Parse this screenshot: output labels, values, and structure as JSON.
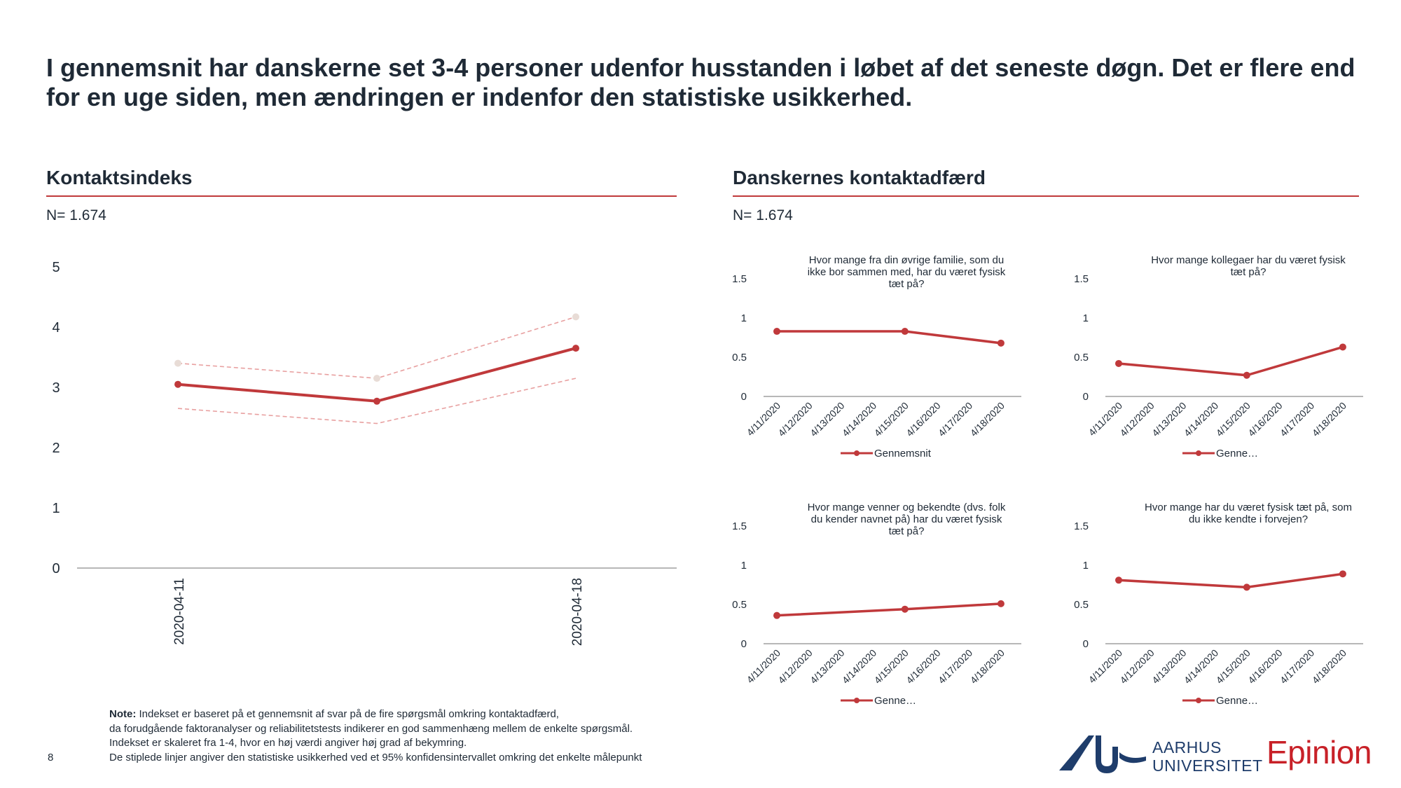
{
  "headline": "I gennemsnit har danskerne set 3-4 personer udenfor husstanden i løbet af det seneste døgn. Det er flere end for en uge siden, men ændringen er indenfor den statistiske usikkerhed.",
  "left": {
    "title": "Kontaktsindeks",
    "n_label": "N= 1.674"
  },
  "right": {
    "title": "Danskernes kontaktadfærd",
    "n_label": "N= 1.674"
  },
  "colors": {
    "accent": "#c0393b",
    "dashed_band": "#e8a0a0",
    "band_marker": "#e8dcd6",
    "text": "#1f2a36",
    "au_blue": "#1f3d6b",
    "epinion_red": "#c82128"
  },
  "chart_data": [
    {
      "type": "line",
      "y_ticks": [
        "0",
        "1",
        "2",
        "3",
        "4",
        "5"
      ],
      "ylim": [
        0,
        5
      ],
      "x_tick_labels": [
        "2020-04-11",
        "2020-04-18"
      ],
      "series": [
        {
          "values": [
            3.05,
            2.77,
            3.65
          ]
        },
        {
          "values": [
            3.4,
            3.15,
            4.17
          ]
        },
        {
          "values": [
            2.65,
            2.4,
            3.15
          ]
        }
      ]
    },
    {
      "type": "line",
      "title": "Hvor mange fra din øvrige familie, som du ikke bor sammen med, har du været fysisk tæt på?",
      "categories": [
        "4/11/2020",
        "4/12/2020",
        "4/13/2020",
        "4/14/2020",
        "4/15/2020",
        "4/16/2020",
        "4/17/2020",
        "4/18/2020"
      ],
      "y_ticks": [
        "0",
        "0.5",
        "1",
        "1.5"
      ],
      "ylim": [
        0,
        1.5
      ],
      "series": [
        {
          "name": "Gennemsnit",
          "x": [
            "4/11/2020",
            "4/15/2020",
            "4/18/2020"
          ],
          "values": [
            0.83,
            0.83,
            0.68
          ]
        }
      ],
      "legend_label": "Gennemsnit"
    },
    {
      "type": "line",
      "title": "Hvor mange kollegaer har du været fysisk tæt på?",
      "categories": [
        "4/11/2020",
        "4/12/2020",
        "4/13/2020",
        "4/14/2020",
        "4/15/2020",
        "4/16/2020",
        "4/17/2020",
        "4/18/2020"
      ],
      "y_ticks": [
        "0",
        "0.5",
        "1",
        "1.5"
      ],
      "ylim": [
        0,
        1.5
      ],
      "series": [
        {
          "name": "Genne…",
          "x": [
            "4/11/2020",
            "4/15/2020",
            "4/18/2020"
          ],
          "values": [
            0.42,
            0.27,
            0.63
          ]
        }
      ],
      "legend_label": "Genne…"
    },
    {
      "type": "line",
      "title": "Hvor mange venner og bekendte (dvs. folk du kender navnet på) har du været fysisk tæt på?",
      "categories": [
        "4/11/2020",
        "4/12/2020",
        "4/13/2020",
        "4/14/2020",
        "4/15/2020",
        "4/16/2020",
        "4/17/2020",
        "4/18/2020"
      ],
      "y_ticks": [
        "0",
        "0.5",
        "1",
        "1.5"
      ],
      "ylim": [
        0,
        1.5
      ],
      "series": [
        {
          "name": "Genne…",
          "x": [
            "4/11/2020",
            "4/15/2020",
            "4/18/2020"
          ],
          "values": [
            0.36,
            0.44,
            0.51
          ]
        }
      ],
      "legend_label": "Genne…"
    },
    {
      "type": "line",
      "title": "Hvor mange har du været fysisk tæt på, som du ikke kendte i forvejen?",
      "categories": [
        "4/11/2020",
        "4/12/2020",
        "4/13/2020",
        "4/14/2020",
        "4/15/2020",
        "4/16/2020",
        "4/17/2020",
        "4/18/2020"
      ],
      "y_ticks": [
        "0",
        "0.5",
        "1",
        "1.5"
      ],
      "ylim": [
        0,
        1.5
      ],
      "series": [
        {
          "name": "Genne…",
          "x": [
            "4/11/2020",
            "4/15/2020",
            "4/18/2020"
          ],
          "values": [
            0.81,
            0.72,
            0.89
          ]
        }
      ],
      "legend_label": "Genne…"
    }
  ],
  "note": {
    "label": "Note:",
    "line1": " Indekset er baseret på et gennemsnit af svar på de fire spørgsmål omkring kontaktadfærd,",
    "line2": "da forudgående faktoranalyser og reliabilitetstests indikerer en god sammenhæng mellem de enkelte spørgsmål.",
    "line3": "Indekset er skaleret fra 1-4, hvor en høj værdi angiver høj grad af bekymring.",
    "line4": "De stiplede linjer angiver den statistiske usikkerhed ved et 95% konfidensintervallet omkring det enkelte målepunkt"
  },
  "page_number": "8",
  "logos": {
    "au_line1": "AARHUS",
    "au_line2": "UNIVERSITET",
    "epinion": "Epinion"
  }
}
